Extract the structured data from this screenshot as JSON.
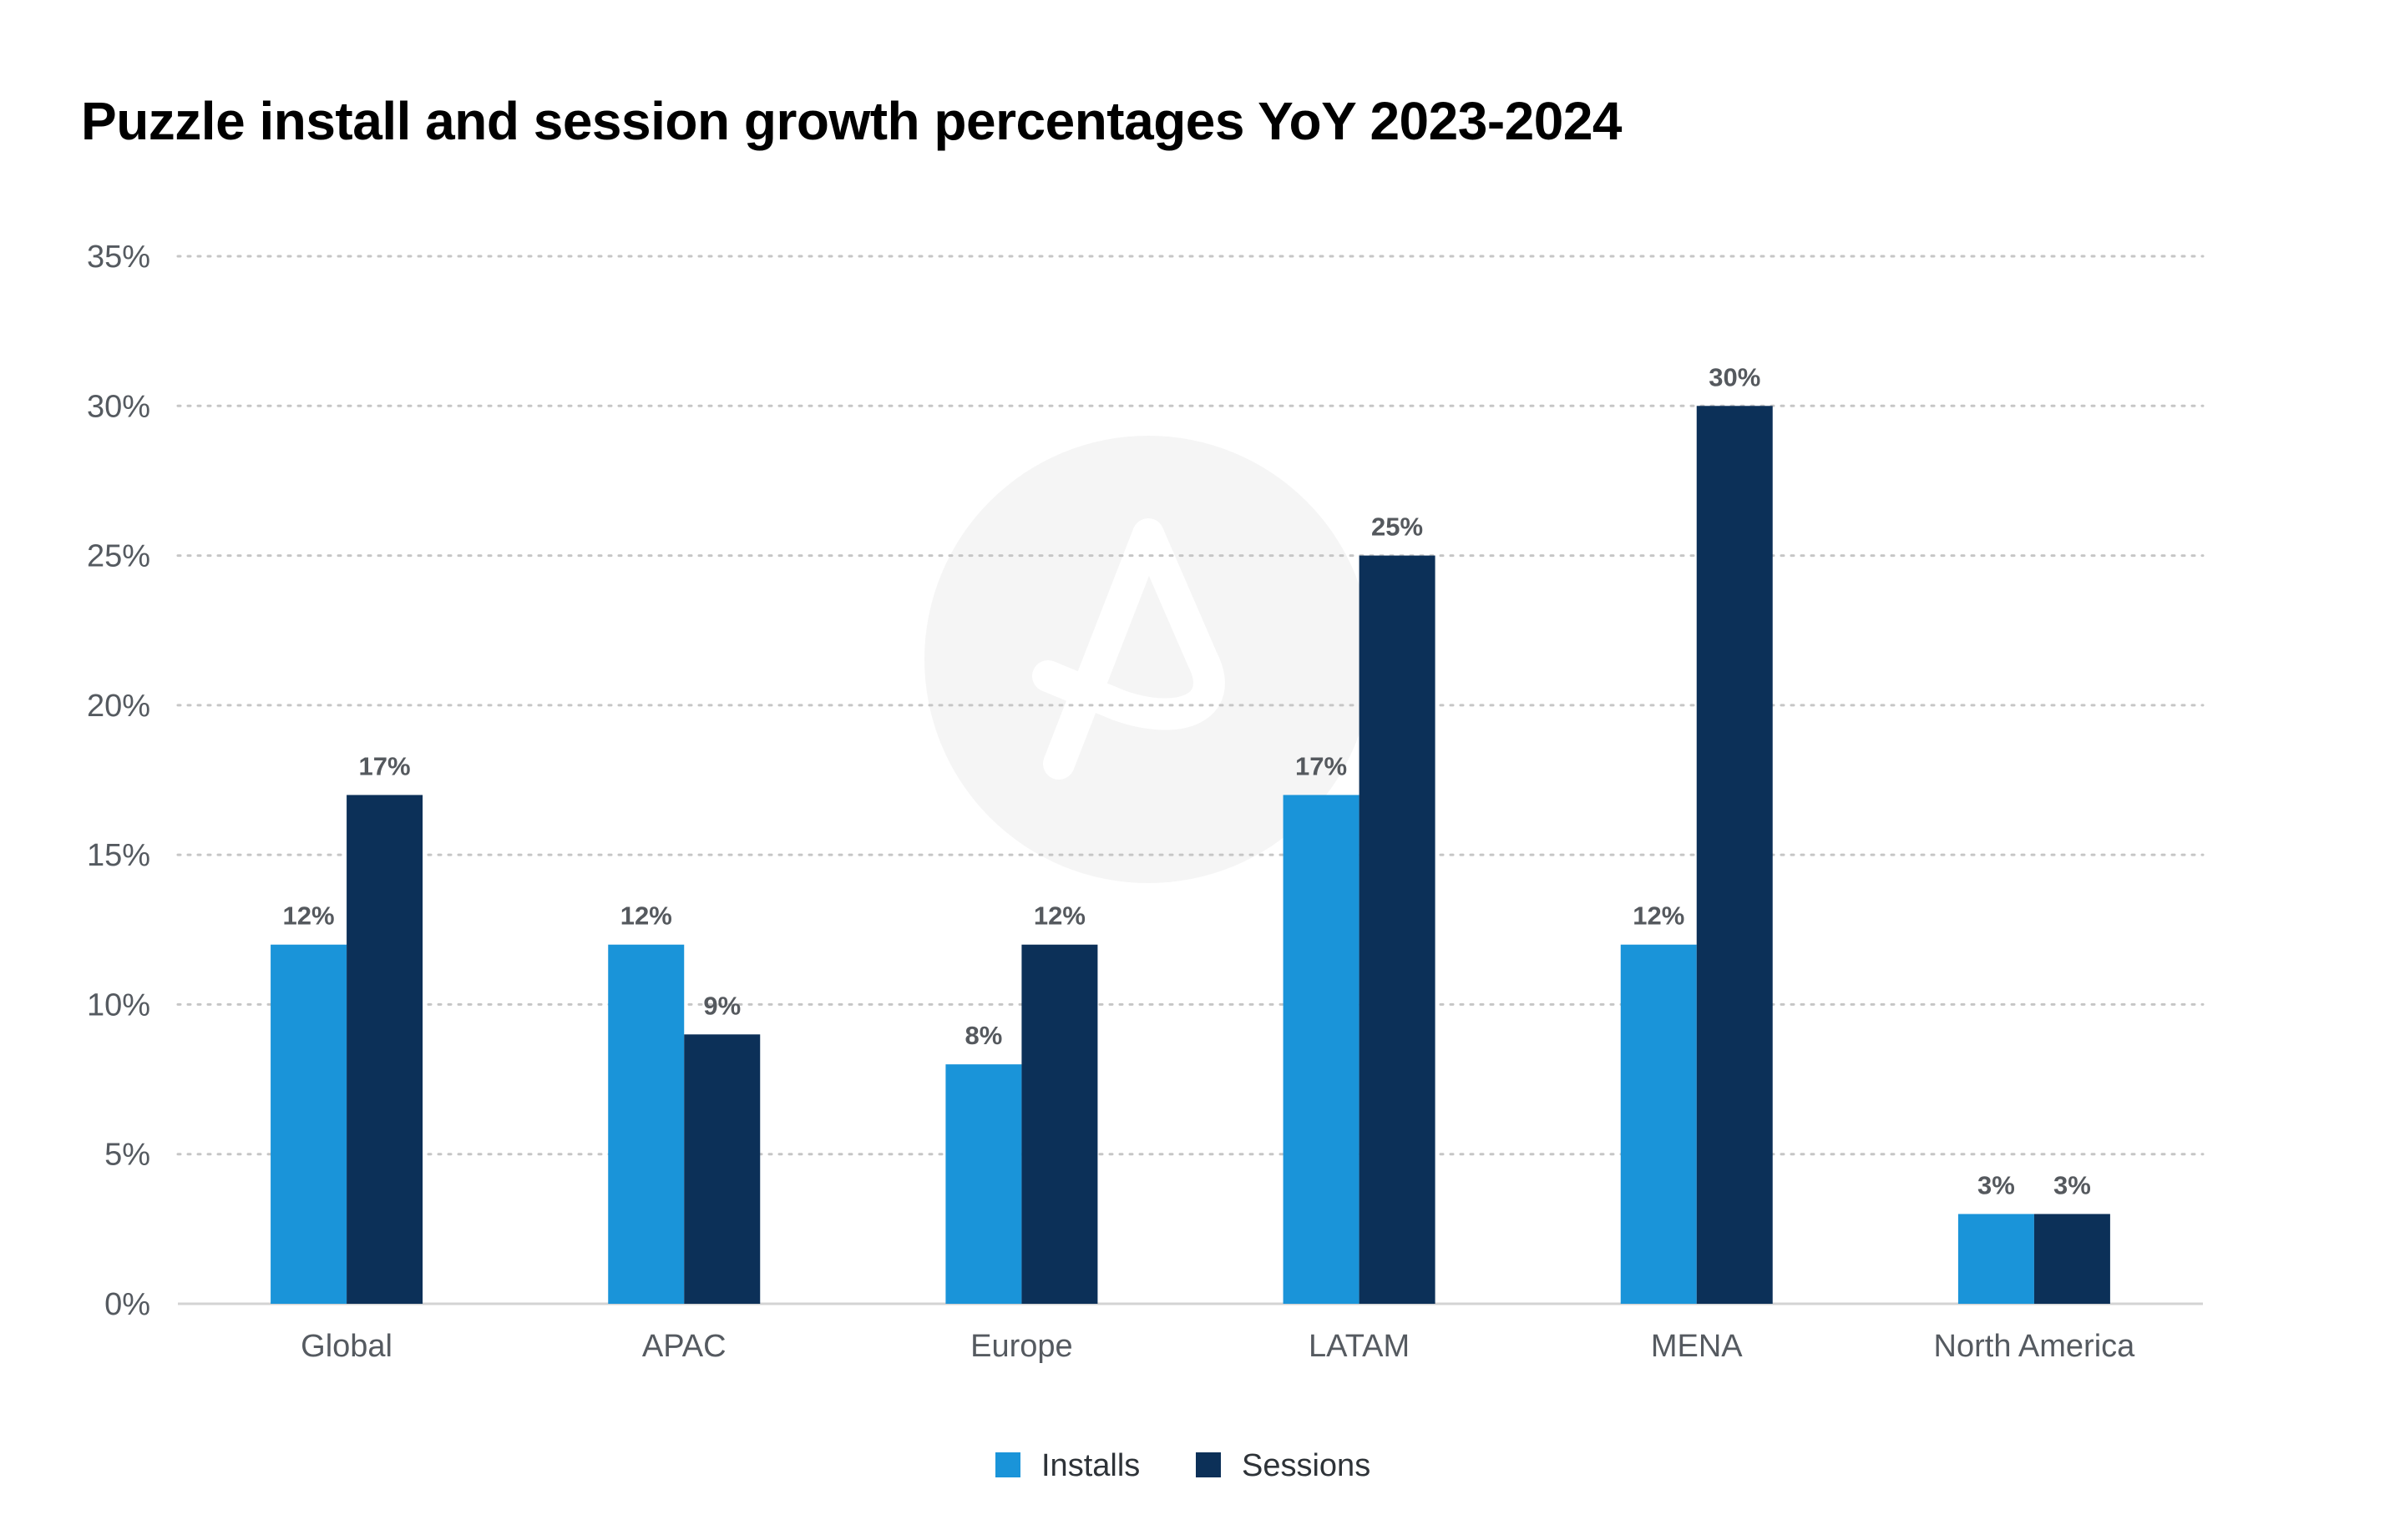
{
  "chart_data": {
    "type": "bar",
    "title": "Puzzle install and session growth percentages YoY 2023-2024",
    "categories": [
      "Global",
      "APAC",
      "Europe",
      "LATAM",
      "MENA",
      "North America"
    ],
    "series": [
      {
        "name": "Installs",
        "color": "#1a94d9",
        "values": [
          12,
          12,
          8,
          17,
          12,
          3
        ]
      },
      {
        "name": "Sessions",
        "color": "#0c3058",
        "values": [
          17,
          9,
          12,
          25,
          30,
          3
        ]
      }
    ],
    "value_suffix": "%",
    "ylim": [
      0,
      35
    ],
    "yticks": [
      0,
      5,
      10,
      15,
      20,
      25,
      30,
      35
    ],
    "grid": true,
    "legend_position": "bottom-center",
    "watermark_icon": "brand-logo-icon"
  }
}
